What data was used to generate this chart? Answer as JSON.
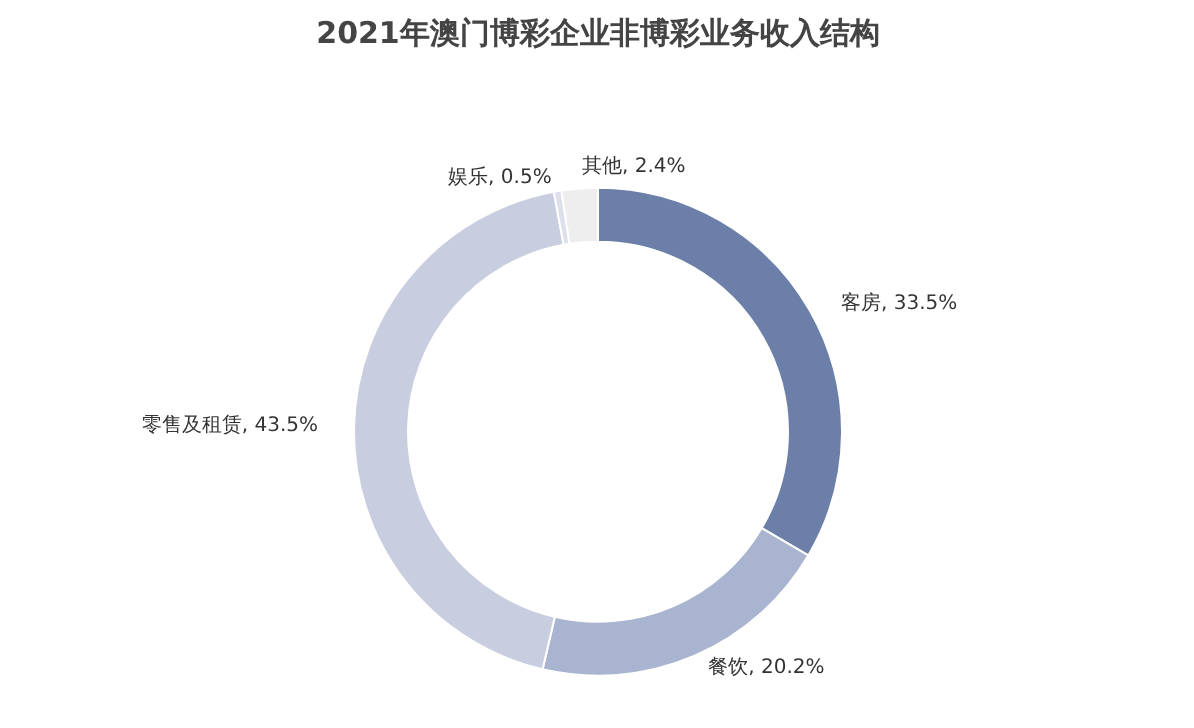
{
  "chart_data": {
    "type": "donut",
    "title": "2021年澳门博彩企业非博彩业务收入结构",
    "categories": [
      "客房",
      "餐饮",
      "零售及租赁",
      "娱乐",
      "其他"
    ],
    "values": [
      33.5,
      20.2,
      43.5,
      0.5,
      2.4
    ],
    "colors": [
      "#6b7fa8",
      "#a9b5d0",
      "#c8cde0",
      "#dde0ea",
      "#eeeeee"
    ],
    "value_labels": [
      "33.5%",
      "20.2%",
      "43.5%",
      "0.5%",
      "2.4%"
    ]
  }
}
